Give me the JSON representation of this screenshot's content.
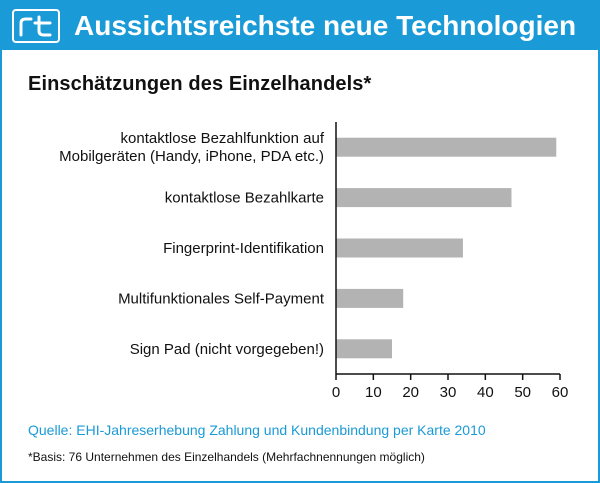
{
  "header": {
    "logo_text": "rt",
    "title": "Aussichtsreichste neue Technologien"
  },
  "subtitle": "Einschätzungen des Einzelhandels*",
  "chart_data": {
    "type": "bar",
    "orientation": "horizontal",
    "categories": [
      [
        "kontaktlose Bezahlfunktion auf",
        "Mobilgeräten (Handy, iPhone, PDA etc.)"
      ],
      [
        "kontaktlose Bezahlkarte"
      ],
      [
        "Fingerprint-Identifikation"
      ],
      [
        "Multifunktionales Self-Payment"
      ],
      [
        "Sign Pad (nicht vorgegeben!)"
      ]
    ],
    "values": [
      59,
      47,
      34,
      18,
      15
    ],
    "xlim": [
      0,
      60
    ],
    "xticks": [
      0,
      10,
      20,
      30,
      40,
      50,
      60
    ],
    "grid": false,
    "bar_color": "#b3b3b3"
  },
  "source": "Quelle: EHI-Jahreserhebung Zahlung und Kundenbindung per Karte 2010",
  "footnote": "*Basis: 76 Unternehmen des Einzelhandels (Mehrfachnennungen möglich)",
  "colors": {
    "brand": "#1a9ad6",
    "bar": "#b3b3b3"
  }
}
